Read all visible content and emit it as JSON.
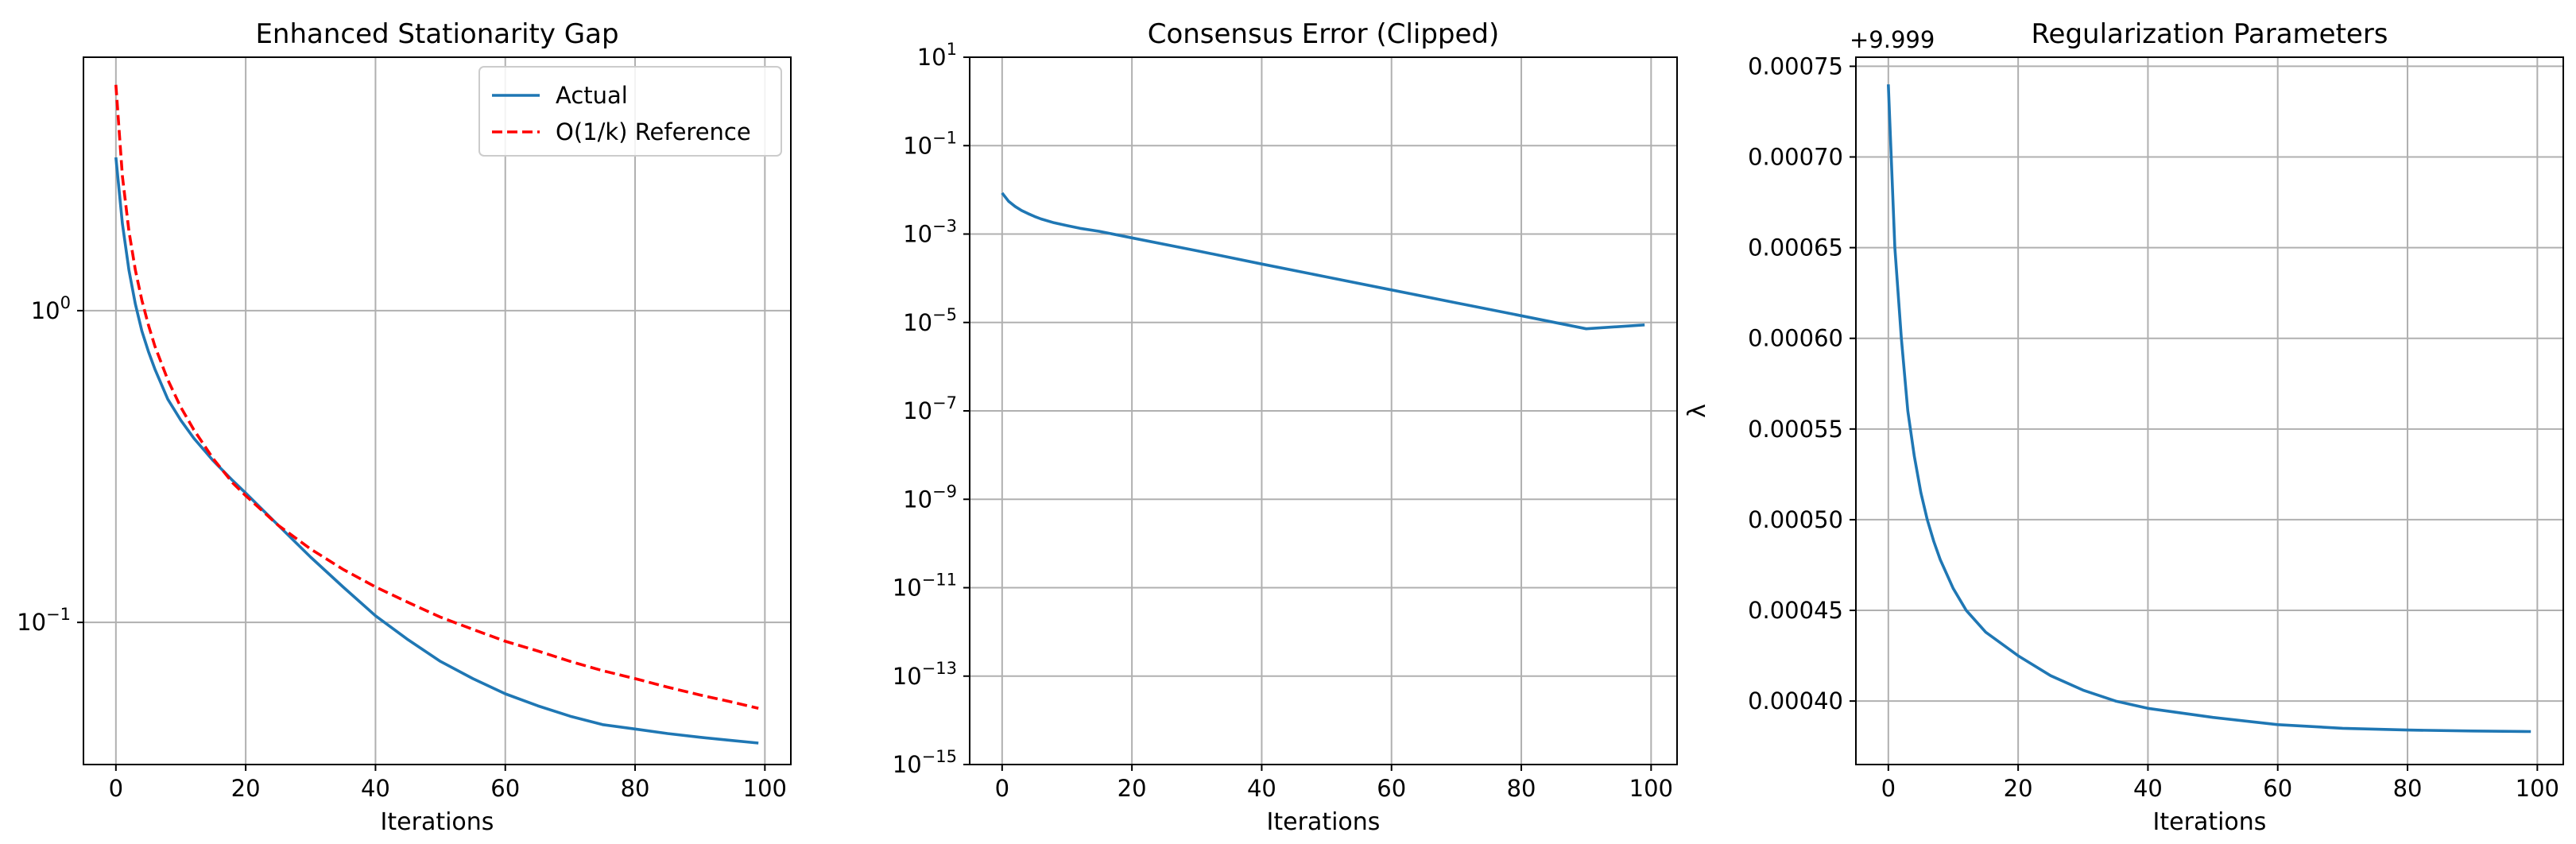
{
  "chart_data": [
    {
      "type": "line",
      "title": "Enhanced Stationarity Gap",
      "xlabel": "Iterations",
      "ylabel": "",
      "yscale": "log",
      "xlim": [
        -5,
        104
      ],
      "ylim": [
        0.035,
        6.5
      ],
      "xticks": [
        0,
        20,
        40,
        60,
        80,
        100
      ],
      "xtick_labels": [
        "0",
        "20",
        "40",
        "60",
        "80",
        "100"
      ],
      "yticks": [
        1,
        0.1
      ],
      "ytick_labels": [
        {
          "base": "10",
          "exp": "0"
        },
        {
          "base": "10",
          "exp": "−1"
        }
      ],
      "grid": true,
      "legend": {
        "position": "top-right",
        "entries": [
          "Actual",
          "O(1/k) Reference"
        ]
      },
      "series": [
        {
          "name": "Actual",
          "color": "#1f77b4",
          "style": "solid",
          "x": [
            0,
            1,
            2,
            3,
            4,
            5,
            6,
            8,
            10,
            12,
            15,
            18,
            20,
            25,
            30,
            35,
            40,
            45,
            50,
            55,
            60,
            65,
            70,
            75,
            80,
            85,
            90,
            95,
            99
          ],
          "y": [
            3.1,
            1.9,
            1.35,
            1.05,
            0.86,
            0.74,
            0.65,
            0.52,
            0.445,
            0.39,
            0.33,
            0.285,
            0.26,
            0.205,
            0.162,
            0.13,
            0.105,
            0.088,
            0.075,
            0.066,
            0.059,
            0.054,
            0.05,
            0.047,
            0.0455,
            0.044,
            0.0428,
            0.0418,
            0.041
          ]
        },
        {
          "name": "O(1/k) Reference",
          "color": "#ff0000",
          "style": "dashed",
          "x": [
            0,
            1,
            2,
            3,
            4,
            5,
            6,
            8,
            10,
            12,
            15,
            18,
            20,
            25,
            30,
            35,
            40,
            45,
            50,
            55,
            60,
            65,
            70,
            75,
            80,
            85,
            90,
            95,
            99
          ],
          "y": [
            5.3,
            2.7,
            1.8,
            1.35,
            1.08,
            0.9,
            0.77,
            0.6,
            0.49,
            0.415,
            0.335,
            0.28,
            0.255,
            0.205,
            0.172,
            0.148,
            0.13,
            0.116,
            0.104,
            0.095,
            0.087,
            0.081,
            0.075,
            0.07,
            0.066,
            0.062,
            0.0585,
            0.0555,
            0.053
          ]
        }
      ]
    },
    {
      "type": "line",
      "title": "Consensus Error (Clipped)",
      "xlabel": "Iterations",
      "ylabel": "",
      "yscale": "log",
      "xlim": [
        -5,
        104
      ],
      "ylim": [
        1e-15,
        10
      ],
      "xticks": [
        0,
        20,
        40,
        60,
        80,
        100
      ],
      "xtick_labels": [
        "0",
        "20",
        "40",
        "60",
        "80",
        "100"
      ],
      "yticks": [
        10,
        0.1,
        0.001,
        1e-05,
        1e-07,
        1e-09,
        1e-11,
        1e-13,
        1e-15
      ],
      "ytick_labels": [
        {
          "base": "10",
          "exp": "1"
        },
        {
          "base": "10",
          "exp": "−1"
        },
        {
          "base": "10",
          "exp": "−3"
        },
        {
          "base": "10",
          "exp": "−5"
        },
        {
          "base": "10",
          "exp": "−7"
        },
        {
          "base": "10",
          "exp": "−9"
        },
        {
          "base": "10",
          "exp": "−11"
        },
        {
          "base": "10",
          "exp": "−13"
        },
        {
          "base": "10",
          "exp": "−15"
        }
      ],
      "grid": true,
      "series": [
        {
          "color": "#1f77b4",
          "style": "solid",
          "x": [
            0,
            1,
            2,
            3,
            4,
            5,
            6,
            8,
            10,
            12,
            15,
            20,
            30,
            40,
            50,
            60,
            70,
            80,
            90,
            99
          ],
          "y": [
            0.0085,
            0.0055,
            0.0042,
            0.0034,
            0.0029,
            0.0025,
            0.0022,
            0.0018,
            0.00155,
            0.00135,
            0.00115,
            0.00082,
            0.00042,
            0.00021,
            0.000107,
            5.45e-05,
            2.78e-05,
            1.42e-05,
            7.2e-06,
            8.8e-06
          ]
        }
      ]
    },
    {
      "type": "line",
      "title": "Regularization Parameters",
      "xlabel": "Iterations",
      "ylabel": "λ",
      "offset_text": "+9.999",
      "yscale": "linear",
      "xlim": [
        -5,
        104
      ],
      "ylim": [
        0.000365,
        0.000755
      ],
      "xticks": [
        0,
        20,
        40,
        60,
        80,
        100
      ],
      "xtick_labels": [
        "0",
        "20",
        "40",
        "60",
        "80",
        "100"
      ],
      "yticks": [
        0.0004,
        0.00045,
        0.0005,
        0.00055,
        0.0006,
        0.00065,
        0.0007,
        0.00075
      ],
      "ytick_labels": [
        "0.00040",
        "0.00045",
        "0.00050",
        "0.00055",
        "0.00060",
        "0.00065",
        "0.00070",
        "0.00075"
      ],
      "grid": true,
      "series": [
        {
          "color": "#1f77b4",
          "style": "solid",
          "x": [
            0,
            1,
            2,
            3,
            4,
            5,
            6,
            7,
            8,
            10,
            12,
            15,
            20,
            25,
            30,
            35,
            40,
            50,
            60,
            70,
            80,
            90,
            99
          ],
          "y": [
            0.00074,
            0.00065,
            0.0006,
            0.00056,
            0.000535,
            0.000515,
            0.0005,
            0.000488,
            0.000478,
            0.000462,
            0.00045,
            0.000438,
            0.000425,
            0.000414,
            0.000406,
            0.0004,
            0.000396,
            0.000391,
            0.000387,
            0.000385,
            0.000384,
            0.0003835,
            0.0003832
          ]
        }
      ]
    }
  ]
}
